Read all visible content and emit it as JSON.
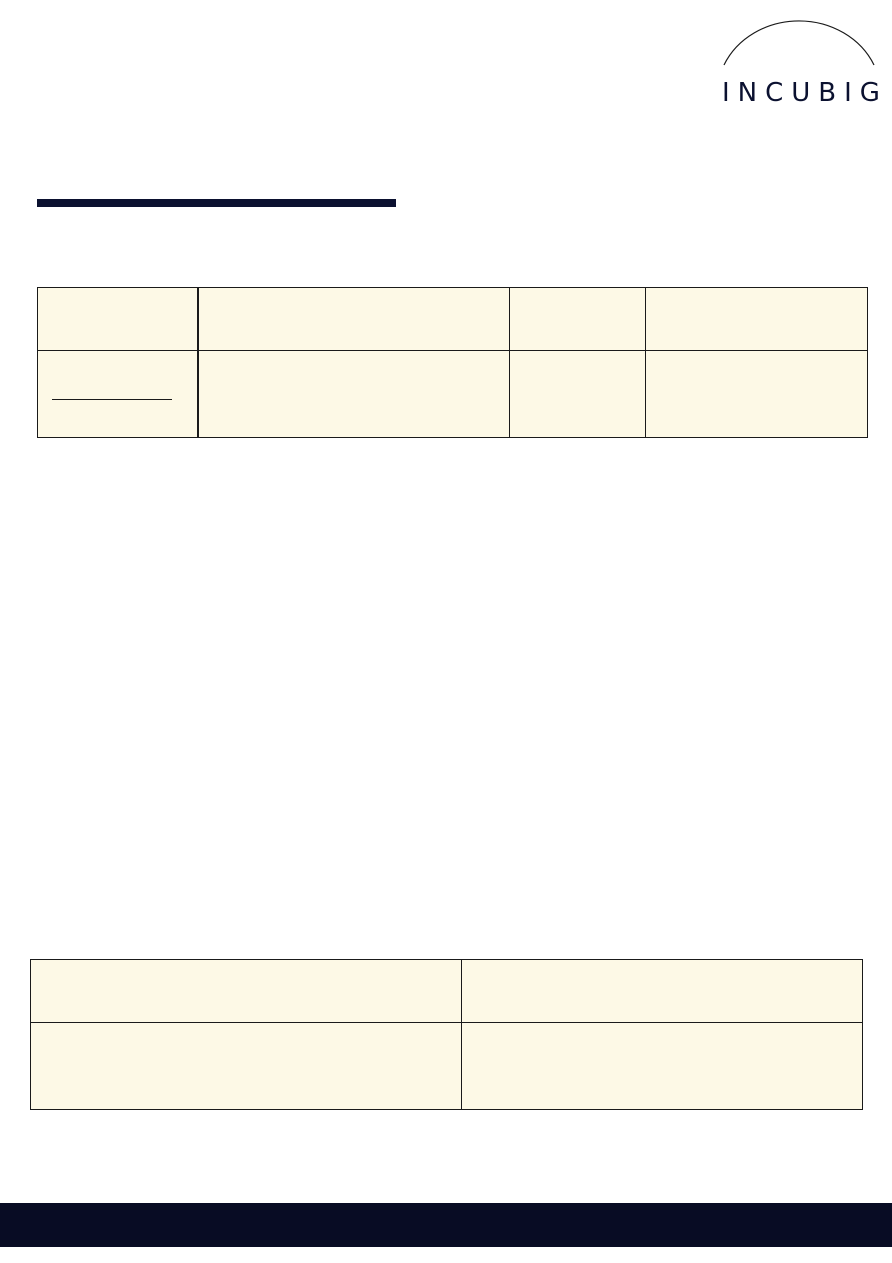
{
  "brand": {
    "logo_text": "INCUBIG",
    "text_color": "#0b1130",
    "arc_color": "#1a1a1a"
  },
  "colors": {
    "title_rule": "#0b1130",
    "table_fill": "#fdf9e6",
    "footer": "#080c24"
  },
  "table_1": {
    "columns": 4,
    "rows": 2
  },
  "table_2": {
    "columns": 2,
    "rows": 2
  }
}
